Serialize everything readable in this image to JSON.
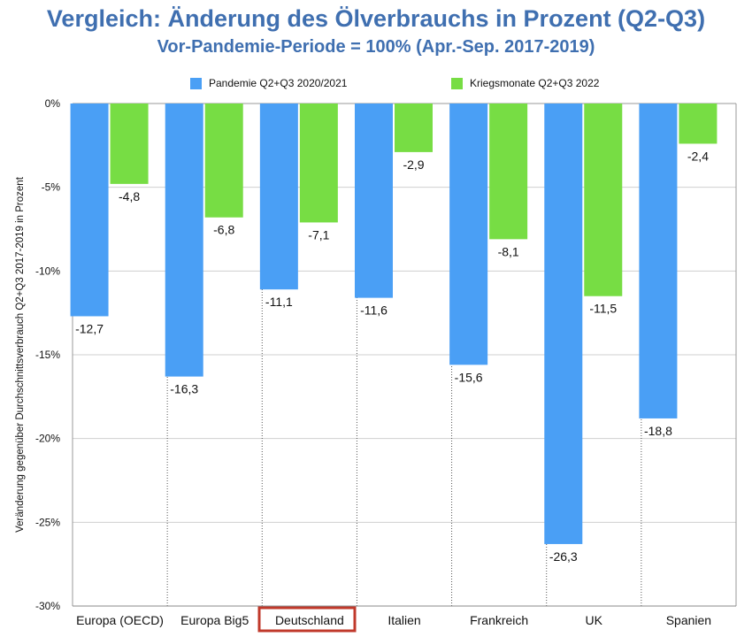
{
  "colors": {
    "pandemic": "#4a9ff5",
    "war": "#77dd44",
    "title": "#3f6fb0",
    "highlight": "#c0392b",
    "grid": "#cfcfcf"
  },
  "chart_data": {
    "type": "bar",
    "title": "Vergleich: Änderung des Ölverbrauchs in Prozent (Q2-Q3)",
    "subtitle": "Vor-Pandemie-Periode = 100% (Apr.-Sep. 2017-2019)",
    "ylabel": "Veränderung gegenüber Durchschnittsverbrauch Q2+Q3 2017-2019 in Prozent",
    "xlabel": "",
    "ylim": [
      -30,
      0
    ],
    "yticks": [
      0,
      -5,
      -10,
      -15,
      -20,
      -25,
      -30
    ],
    "ytick_labels": [
      "0%",
      "-5%",
      "-10%",
      "-15%",
      "-20%",
      "-25%",
      "-30%"
    ],
    "categories": [
      "Europa (OECD)",
      "Europa Big5",
      "Deutschland",
      "Italien",
      "Frankreich",
      "UK",
      "Spanien"
    ],
    "highlighted_category": "Deutschland",
    "legend_position": "top",
    "series": [
      {
        "name": "Pandemie Q2+Q3 2020/2021",
        "values": [
          -12.7,
          -16.3,
          -11.1,
          -11.6,
          -15.6,
          -26.3,
          -18.8
        ],
        "labels": [
          "-12,7",
          "-16,3",
          "-11,1",
          "-11,6",
          "-15,6",
          "-26,3",
          "-18,8"
        ]
      },
      {
        "name": "Kriegsmonate Q2+Q3 2022",
        "values": [
          -4.8,
          -6.8,
          -7.1,
          -2.9,
          -8.1,
          -11.5,
          -2.4
        ],
        "labels": [
          "-4,8",
          "-6,8",
          "-7,1",
          "-2,9",
          "-8,1",
          "-11,5",
          "-2,4"
        ]
      }
    ]
  }
}
